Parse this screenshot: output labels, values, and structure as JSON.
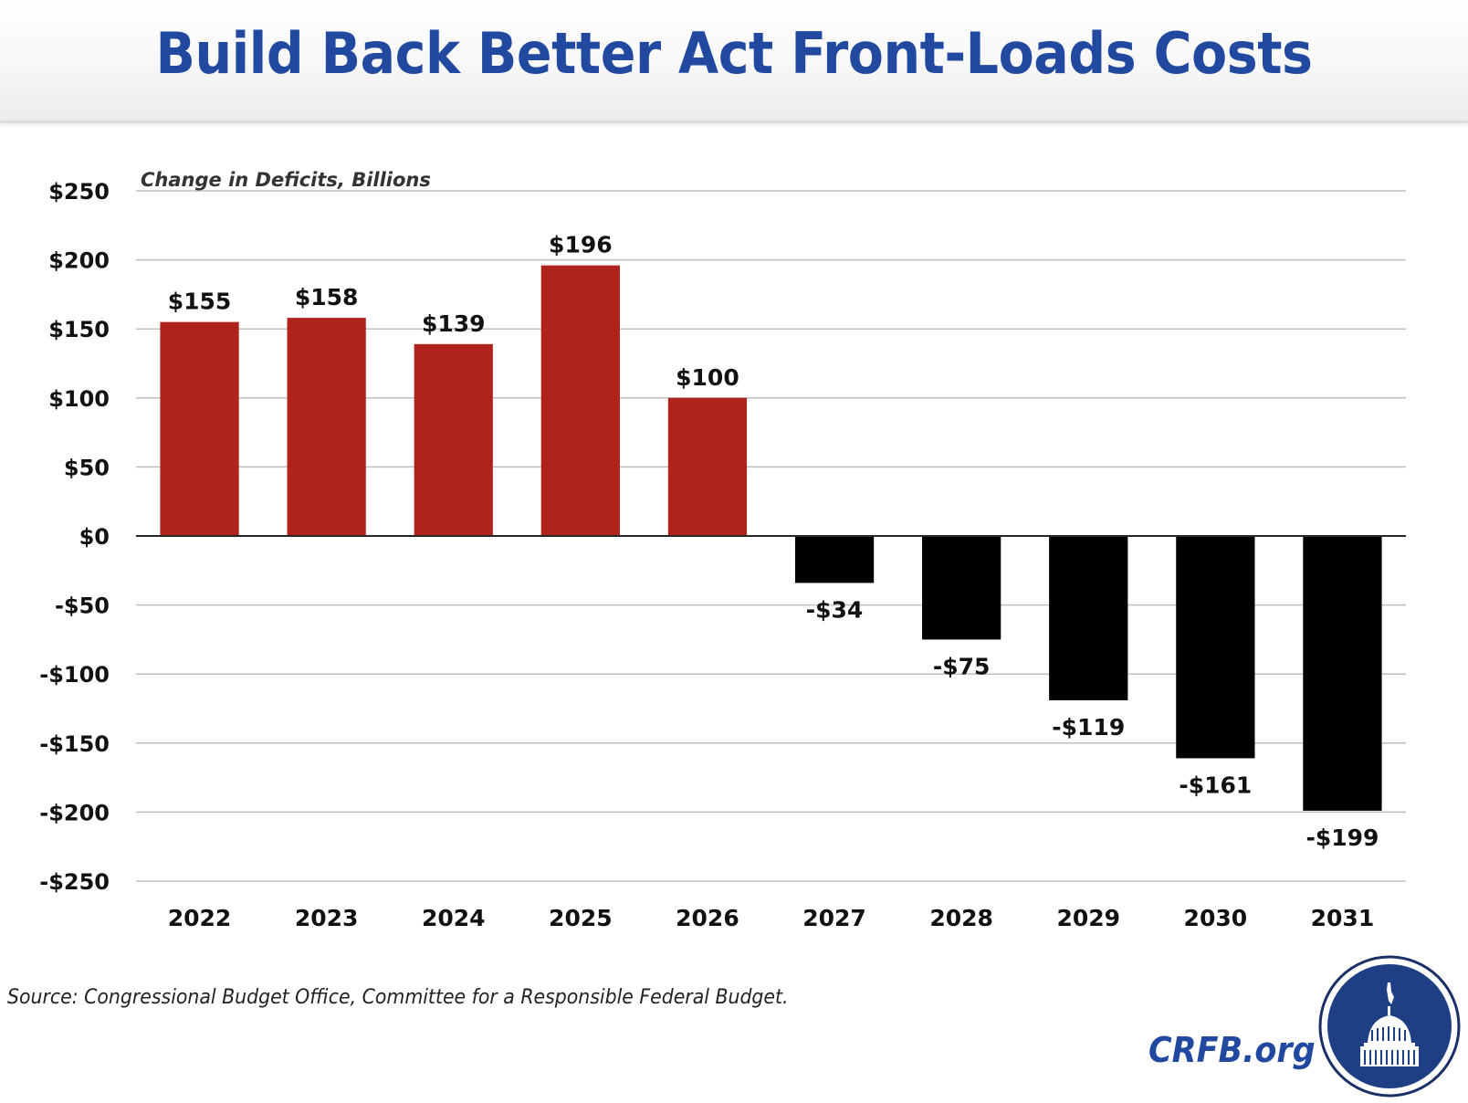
{
  "header": {
    "title": "Build Back Better Act Front-Loads Costs"
  },
  "footer": {
    "source": "Source: Congressional Budget Office, Committee for a Responsible Federal Budget.",
    "brand": "CRFB.org",
    "logo_icon": "capitol-dome-seal-icon"
  },
  "colors": {
    "title": "#2249A0",
    "positive_bar": "#B0231C",
    "negative_bar": "#000000",
    "gridline": "#BFBFBF",
    "zero_line": "#262626",
    "logo_fill": "#1F3F85"
  },
  "chart_data": {
    "type": "bar",
    "title": "Build Back Better Act Front-Loads Costs",
    "ylabel": "Change in Deficits, Billions",
    "xlabel": "",
    "categories": [
      "2022",
      "2023",
      "2024",
      "2025",
      "2026",
      "2027",
      "2028",
      "2029",
      "2030",
      "2031"
    ],
    "values": [
      155,
      158,
      139,
      196,
      100,
      -34,
      -75,
      -119,
      -161,
      -199
    ],
    "data_labels": [
      "$155",
      "$158",
      "$139",
      "$196",
      "$100",
      "-$34",
      "-$75",
      "-$119",
      "-$161",
      "-$199"
    ],
    "ylim": [
      -250,
      250
    ],
    "yticks": [
      250,
      200,
      150,
      100,
      50,
      0,
      -50,
      -100,
      -150,
      -200,
      -250
    ],
    "ytick_labels": [
      "$250",
      "$200",
      "$150",
      "$100",
      "$50",
      "$0",
      "-$50",
      "-$100",
      "-$150",
      "-$200",
      "-$250"
    ],
    "grid": true,
    "legend": "none"
  }
}
